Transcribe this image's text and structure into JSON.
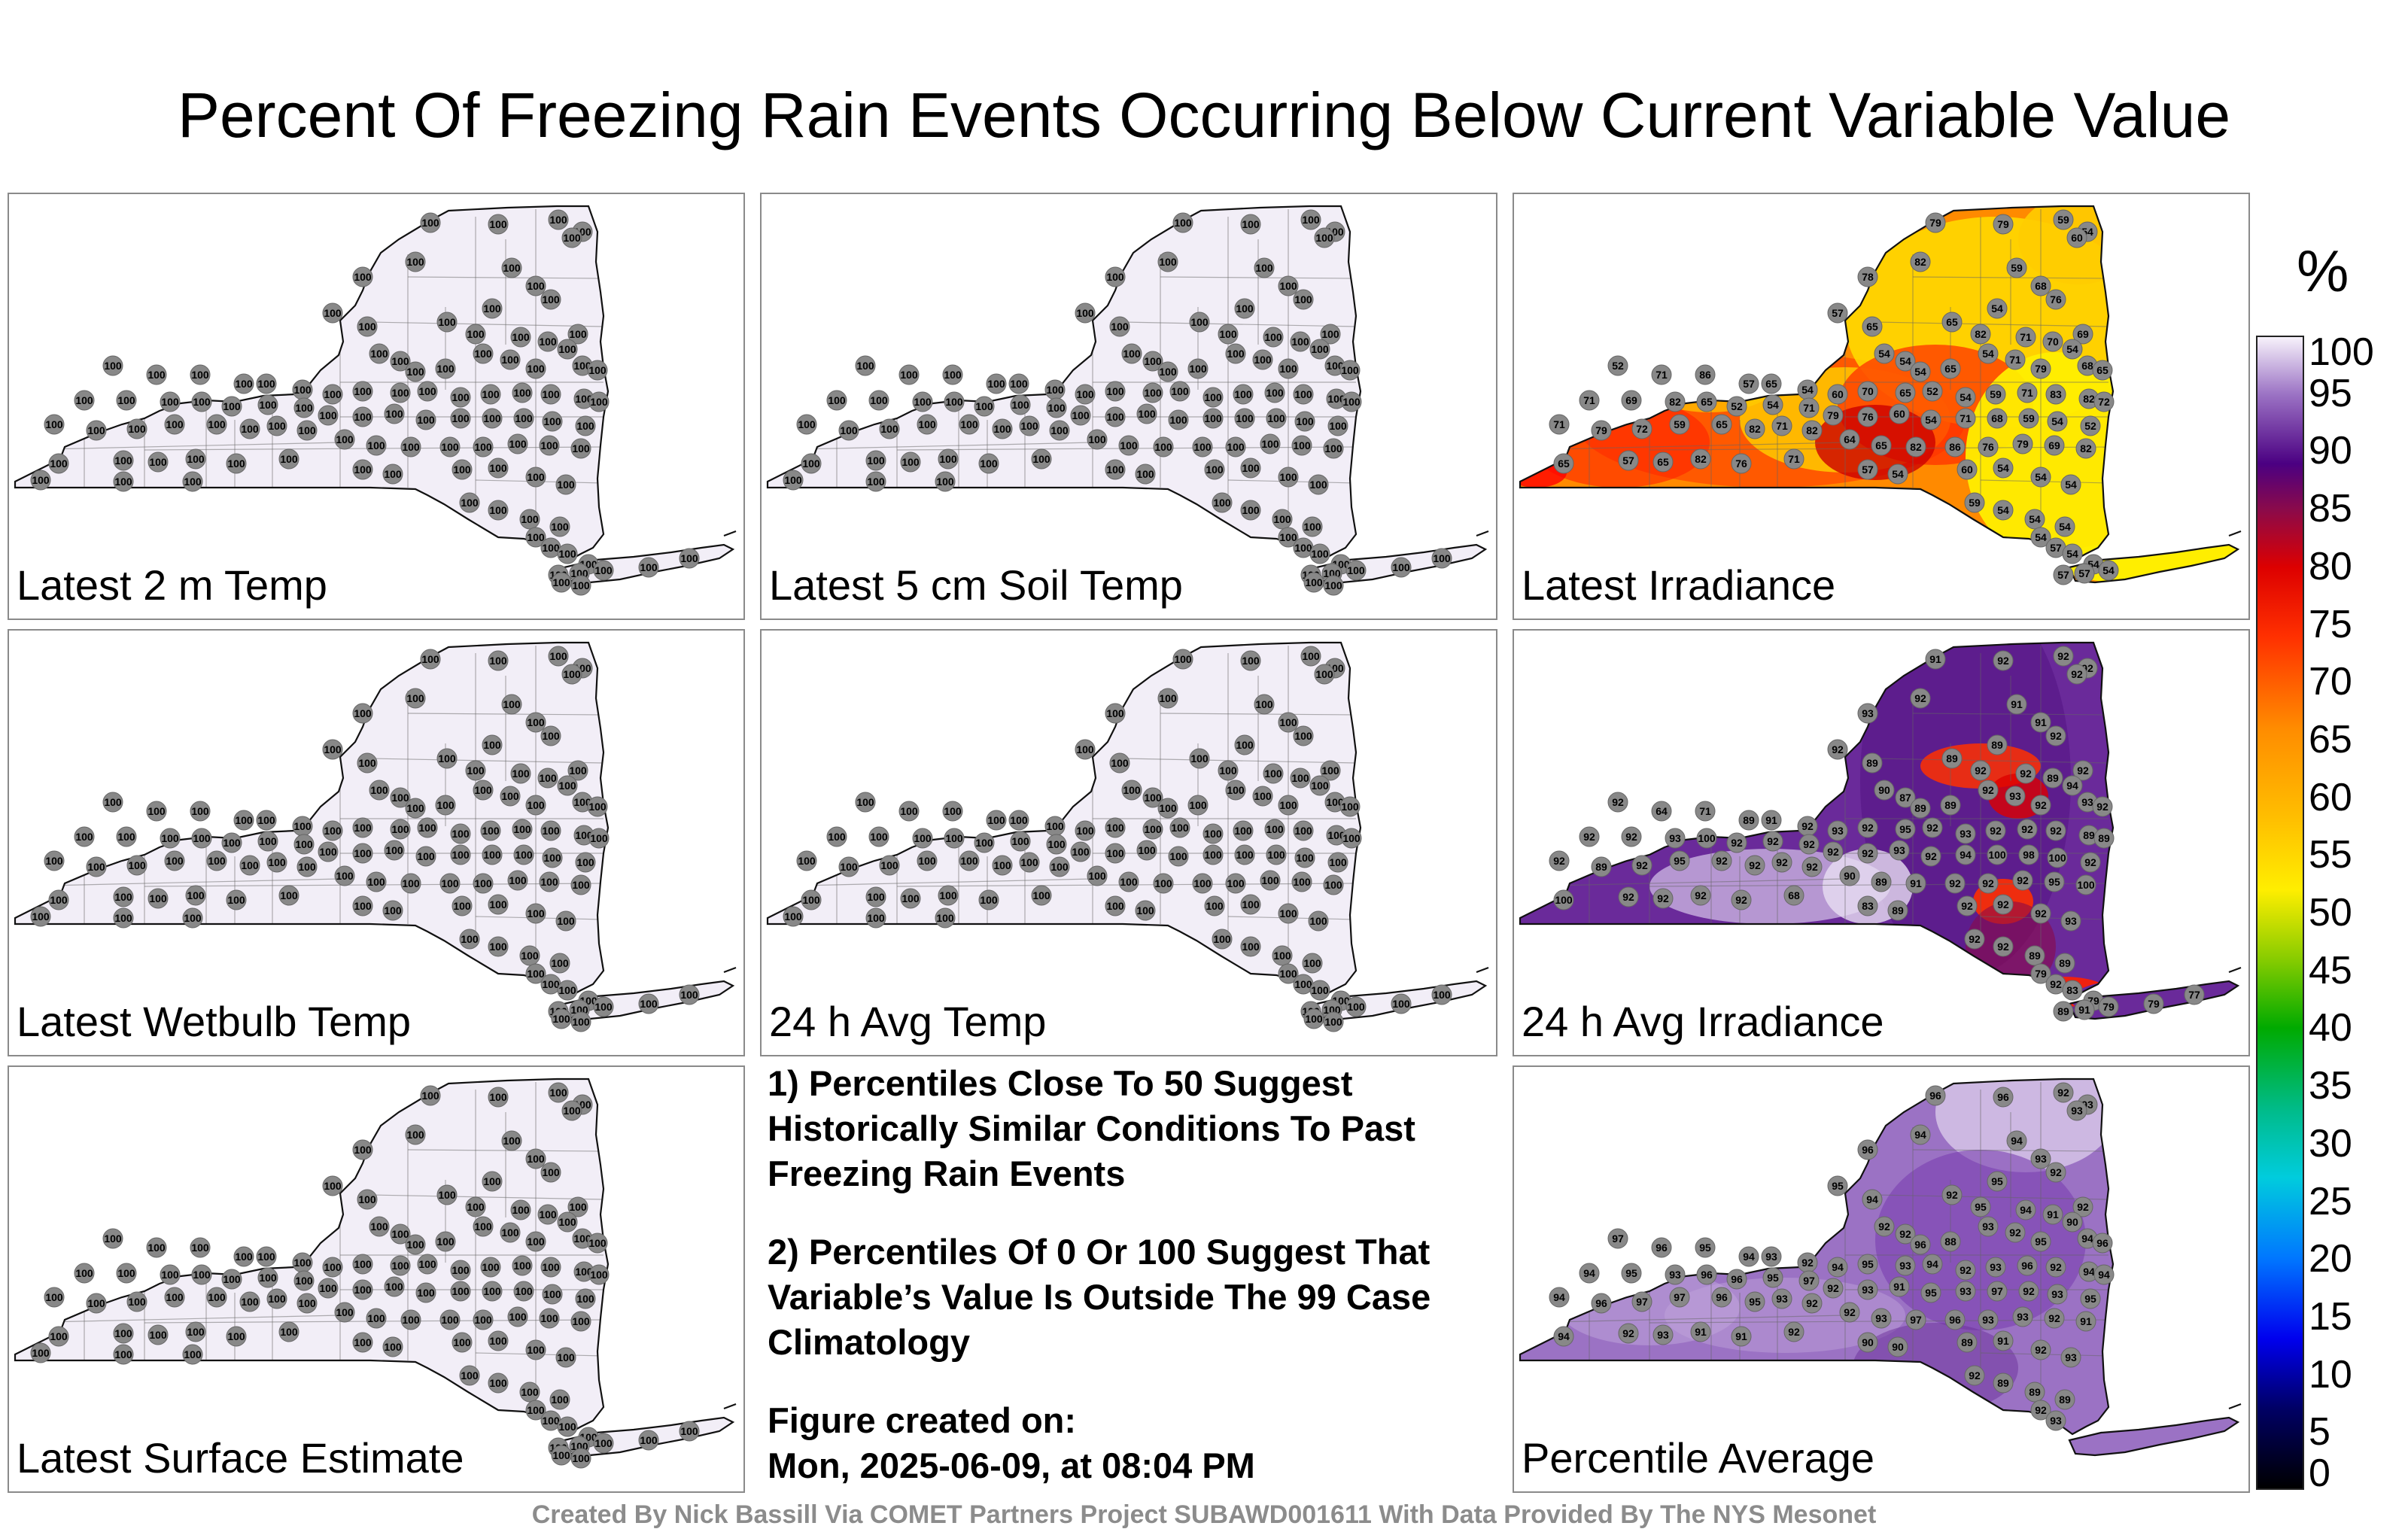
{
  "title": "Percent Of Freezing Rain Events Occurring Below Current Variable Value",
  "panels": [
    {
      "id": "p1",
      "label": "Latest 2 m Temp",
      "mode": "uniform",
      "fill": "#f2eef7",
      "stations": "all100"
    },
    {
      "id": "p2",
      "label": "Latest 5 cm Soil Temp",
      "mode": "uniform",
      "fill": "#f2eef7",
      "stations": "all100"
    },
    {
      "id": "p3",
      "label": "Latest Irradiance",
      "mode": "irradiance",
      "fill": "#ff8a00"
    },
    {
      "id": "p4",
      "label": "Latest Wetbulb Temp",
      "mode": "uniform",
      "fill": "#f2eef7",
      "stations": "all100"
    },
    {
      "id": "p5",
      "label": "24 h Avg Temp",
      "mode": "uniform",
      "fill": "#f2eef7",
      "stations": "all100"
    },
    {
      "id": "p6",
      "label": "24 h Avg Irradiance",
      "mode": "avgirr",
      "fill": "#6a2a9a"
    },
    {
      "id": "p7",
      "label": "Latest Surface Estimate",
      "mode": "uniform",
      "fill": "#f2eef7",
      "stations": "all100"
    },
    {
      "id": "p8",
      "label": "Percentile Average",
      "mode": "pctavg",
      "fill": "#9b72c4"
    }
  ],
  "notes": {
    "line1": "1) Percentiles Close To 50 Suggest Historically Similar Conditions To Past Freezing Rain Events",
    "line2": "2) Percentiles Of 0 Or 100 Suggest That Variable’s Value Is Outside The 99 Case Climatology",
    "line3": "Figure created on:",
    "line4": "Mon, 2025-06-09, at 08:04 PM"
  },
  "credit": "Created By Nick Bassill Via COMET Partners Project SUBAWD001611 With Data Provided By The NYS Mesonet",
  "colorbar": {
    "unit": "%",
    "ticks": [
      "100",
      "95",
      "90",
      "85",
      "80",
      "75",
      "70",
      "65",
      "60",
      "55",
      "50",
      "45",
      "40",
      "35",
      "30",
      "25",
      "20",
      "15",
      "10",
      "5",
      "0"
    ],
    "stops": [
      {
        "v": 0,
        "c": "#000000"
      },
      {
        "v": 7,
        "c": "#000066"
      },
      {
        "v": 13,
        "c": "#0000ee"
      },
      {
        "v": 20,
        "c": "#0077ff"
      },
      {
        "v": 27,
        "c": "#00ccdd"
      },
      {
        "v": 33,
        "c": "#00bb88"
      },
      {
        "v": 40,
        "c": "#00aa00"
      },
      {
        "v": 46,
        "c": "#88cc00"
      },
      {
        "v": 52,
        "c": "#ffee00"
      },
      {
        "v": 58,
        "c": "#ffc000"
      },
      {
        "v": 66,
        "c": "#ff8c00"
      },
      {
        "v": 74,
        "c": "#ff3000"
      },
      {
        "v": 80,
        "c": "#dd0000"
      },
      {
        "v": 85,
        "c": "#8b0a4a"
      },
      {
        "v": 89,
        "c": "#4b0082"
      },
      {
        "v": 95,
        "c": "#9b72c4"
      },
      {
        "v": 100,
        "c": "#f7f2fb"
      }
    ]
  },
  "station_values": {
    "irradiance": [
      "79",
      "79",
      "59",
      "54",
      "60",
      "78",
      "82",
      "59",
      "68",
      "76",
      "54",
      "65",
      "82",
      "71",
      "70",
      "69",
      "57",
      "65",
      "54",
      "54",
      "54",
      "65",
      "54",
      "71",
      "79",
      "54",
      "68",
      "65",
      "52",
      "71",
      "86",
      "57",
      "65",
      "54",
      "60",
      "70",
      "65",
      "52",
      "54",
      "59",
      "71",
      "83",
      "82",
      "72",
      "71",
      "69",
      "82",
      "65",
      "52",
      "54",
      "71",
      "79",
      "76",
      "60",
      "54",
      "71",
      "68",
      "59",
      "54",
      "52",
      "71",
      "79",
      "72",
      "59",
      "65",
      "82",
      "71",
      "82",
      "64",
      "65",
      "82",
      "86",
      "76",
      "79",
      "69",
      "82",
      "65",
      "57",
      "65",
      "82",
      "76",
      "71",
      "57",
      "54",
      "60",
      "54",
      "54",
      "54",
      "59",
      "54",
      "54",
      "54",
      "54",
      "57",
      "54",
      "54",
      "57",
      "57",
      "54"
    ],
    "avgirr": [
      "91",
      "92",
      "92",
      "92",
      "92",
      "93",
      "92",
      "91",
      "91",
      "92",
      "89",
      "89",
      "92",
      "92",
      "89",
      "92",
      "92",
      "89",
      "90",
      "87",
      "89",
      "89",
      "92",
      "93",
      "92",
      "94",
      "93",
      "92",
      "92",
      "64",
      "71",
      "89",
      "91",
      "92",
      "93",
      "92",
      "95",
      "92",
      "93",
      "92",
      "92",
      "92",
      "89",
      "89",
      "92",
      "92",
      "93",
      "100",
      "92",
      "92",
      "92",
      "92",
      "92",
      "93",
      "92",
      "94",
      "100",
      "98",
      "100",
      "92",
      "92",
      "89",
      "92",
      "95",
      "92",
      "92",
      "92",
      "92",
      "90",
      "89",
      "91",
      "92",
      "92",
      "92",
      "95",
      "100",
      "100",
      "92",
      "92",
      "92",
      "92",
      "68",
      "83",
      "89",
      "92",
      "92",
      "92",
      "93",
      "92",
      "92",
      "89",
      "89",
      "79",
      "92",
      "83",
      "79",
      "89",
      "91",
      "79",
      "79",
      "77"
    ],
    "pctavg": [
      "96",
      "96",
      "92",
      "93",
      "93",
      "96",
      "94",
      "94",
      "93",
      "92",
      "95",
      "92",
      "95",
      "94",
      "91",
      "92",
      "95",
      "94",
      "92",
      "92",
      "96",
      "88",
      "93",
      "92",
      "95",
      "90",
      "94",
      "96",
      "97",
      "96",
      "95",
      "94",
      "93",
      "92",
      "94",
      "95",
      "93",
      "94",
      "92",
      "93",
      "96",
      "92",
      "94",
      "94",
      "94",
      "95",
      "93",
      "96",
      "96",
      "95",
      "97",
      "92",
      "93",
      "91",
      "95",
      "93",
      "97",
      "92",
      "93",
      "95",
      "94",
      "96",
      "97",
      "97",
      "96",
      "95",
      "93",
      "92",
      "92",
      "93",
      "97",
      "96",
      "93",
      "93",
      "92",
      "91",
      "94",
      "92",
      "93",
      "91",
      "91",
      "92",
      "90",
      "90",
      "89",
      "91",
      "92",
      "93",
      "92",
      "89",
      "89",
      "89",
      "92",
      "93"
    ]
  }
}
